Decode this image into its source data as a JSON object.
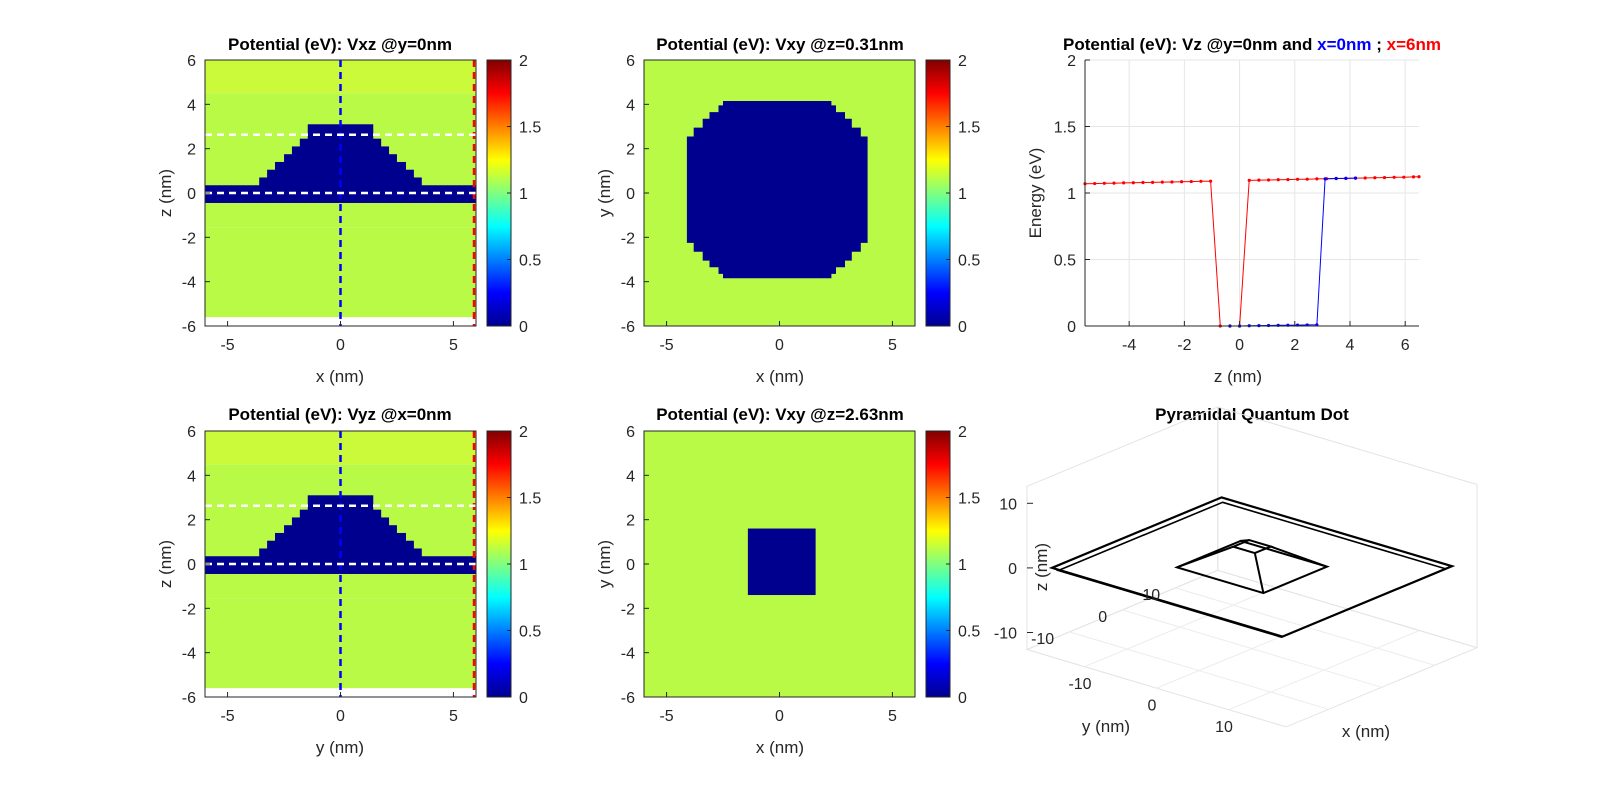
{
  "figure": {
    "panels": [
      {
        "title": "Potential (eV): Vxz @y=0nm",
        "xlabel": "x (nm)",
        "ylabel": "z (nm)"
      },
      {
        "title": "Potential (eV): Vxy @z=0.31nm",
        "xlabel": "x (nm)",
        "ylabel": "y (nm)"
      },
      {
        "title_parts": [
          "Potential (eV): Vz @y=0nm and ",
          "x=0nm",
          " ; ",
          "x=6nm"
        ],
        "xlabel": "z (nm)",
        "ylabel": "Energy (eV)"
      },
      {
        "title": "Potential (eV): Vyz @x=0nm",
        "xlabel": "y (nm)",
        "ylabel": "z (nm)"
      },
      {
        "title": "Potential (eV): Vxy @z=2.63nm",
        "xlabel": "x (nm)",
        "ylabel": "y (nm)"
      },
      {
        "title": "Pyramidal Quantum Dot",
        "xlabel": "x (nm)",
        "ylabel": "y (nm)",
        "zlabel": "z (nm)"
      }
    ]
  },
  "colors": {
    "barrier_low": "#b8fa46",
    "barrier_high": "#cbfa3a",
    "well": "#00008f",
    "cut_blue": "#0000ff",
    "cut_red": "#ff0000",
    "cut_white": "#ffffff"
  },
  "chart_data": [
    {
      "type": "heatmap",
      "title": "Potential (eV): Vxz @y=0nm",
      "xlabel": "x (nm)",
      "ylabel": "z (nm)",
      "xlim": [
        -6,
        6
      ],
      "ylim": [
        -6,
        6
      ],
      "xticks": [
        -5,
        0,
        5
      ],
      "yticks": [
        -6,
        -4,
        -2,
        0,
        2,
        4,
        6
      ],
      "colorbar": {
        "colormap": "jet",
        "clim": [
          0,
          2
        ],
        "ticks": [
          "0",
          "0.5",
          "1",
          "1.5",
          "2"
        ]
      },
      "barrier_bands": [
        {
          "z_range": [
            -5.6,
            -1.55
          ],
          "value_eV": 1.07
        },
        {
          "z_range": [
            -1.55,
            4.5
          ],
          "value_eV": 1.09
        },
        {
          "z_range": [
            4.5,
            6.0
          ],
          "value_eV": 1.12
        }
      ],
      "wetting_layer_z": [
        -0.45,
        0.35
      ],
      "dot_steps": [
        {
          "z_range": [
            0.35,
            0.7
          ],
          "x_range": [
            -3.6,
            3.6
          ]
        },
        {
          "z_range": [
            0.7,
            1.05
          ],
          "x_range": [
            -3.25,
            3.25
          ]
        },
        {
          "z_range": [
            1.05,
            1.4
          ],
          "x_range": [
            -2.9,
            2.9
          ]
        },
        {
          "z_range": [
            1.4,
            1.75
          ],
          "x_range": [
            -2.5,
            2.5
          ]
        },
        {
          "z_range": [
            1.75,
            2.1
          ],
          "x_range": [
            -2.15,
            2.15
          ]
        },
        {
          "z_range": [
            2.1,
            2.45
          ],
          "x_range": [
            -1.8,
            1.8
          ]
        },
        {
          "z_range": [
            2.45,
            2.8
          ],
          "x_range": [
            -1.45,
            1.45
          ]
        },
        {
          "z_range": [
            2.8,
            3.1
          ],
          "x_range": [
            -1.45,
            1.45
          ]
        }
      ],
      "cut_lines": [
        {
          "orientation": "vertical",
          "at": 0,
          "color": "blue"
        },
        {
          "orientation": "vertical",
          "at": 6,
          "color": "red"
        },
        {
          "orientation": "horizontal",
          "at": 0.0,
          "color": "white"
        },
        {
          "orientation": "horizontal",
          "at": 2.63,
          "color": "white"
        }
      ]
    },
    {
      "type": "heatmap",
      "title": "Potential (eV): Vxy @z=0.31nm",
      "xlabel": "x (nm)",
      "ylabel": "y (nm)",
      "xlim": [
        -6,
        6
      ],
      "ylim": [
        -6,
        6
      ],
      "xticks": [
        -5,
        0,
        5
      ],
      "yticks": [
        -6,
        -4,
        -2,
        0,
        2,
        4,
        6
      ],
      "colorbar": {
        "colormap": "jet",
        "clim": [
          0,
          2
        ],
        "ticks": [
          "0",
          "0.5",
          "1",
          "1.5",
          "2"
        ]
      },
      "barrier_value_eV": 1.09,
      "well_shape": "octagon",
      "well_half_width": 4.0,
      "well_value_eV": 0
    },
    {
      "type": "line",
      "title": "Potential (eV): Vz @y=0nm and x=0nm ; x=6nm",
      "xlabel": "z (nm)",
      "ylabel": "Energy (eV)",
      "xlim": [
        -5.6,
        6.5
      ],
      "ylim": [
        0,
        2
      ],
      "xticks": [
        -4,
        -2,
        0,
        2,
        4,
        6
      ],
      "yticks": [
        "0",
        "0.5",
        "1",
        "1.5",
        "2"
      ],
      "grid": true,
      "series": [
        {
          "name": "x=6nm",
          "color": "red",
          "x": [
            -5.6,
            -5.25,
            -4.9,
            -4.55,
            -4.2,
            -3.85,
            -3.5,
            -3.15,
            -2.8,
            -2.45,
            -2.1,
            -1.75,
            -1.4,
            -1.05,
            -0.7,
            -0.35,
            0.0,
            0.35,
            0.7,
            1.05,
            1.4,
            1.75,
            2.1,
            2.45,
            2.8,
            3.15,
            3.5,
            3.85,
            4.2,
            4.55,
            4.9,
            5.25,
            5.6,
            5.95,
            6.3,
            6.5
          ],
          "y": [
            1.07,
            1.071,
            1.073,
            1.074,
            1.076,
            1.077,
            1.079,
            1.08,
            1.082,
            1.083,
            1.085,
            1.086,
            1.088,
            1.089,
            0.0,
            0.0,
            0.0,
            1.095,
            1.097,
            1.098,
            1.1,
            1.101,
            1.103,
            1.104,
            1.106,
            1.107,
            1.109,
            1.11,
            1.112,
            1.113,
            1.115,
            1.116,
            1.118,
            1.119,
            1.121,
            1.122
          ]
        },
        {
          "name": "x=0nm",
          "color": "blue",
          "x": [
            -0.35,
            0.0,
            0.35,
            0.7,
            1.05,
            1.4,
            1.75,
            2.1,
            2.45,
            2.8,
            3.1,
            3.5,
            3.85,
            4.2
          ],
          "y": [
            0.0,
            0.0,
            0.002,
            0.003,
            0.004,
            0.005,
            0.006,
            0.007,
            0.008,
            0.009,
            1.106,
            1.109,
            1.11,
            1.112
          ]
        }
      ]
    },
    {
      "type": "heatmap",
      "title": "Potential (eV): Vyz @x=0nm",
      "xlabel": "y (nm)",
      "ylabel": "z (nm)",
      "xlim": [
        -6,
        6
      ],
      "ylim": [
        -6,
        6
      ],
      "xticks": [
        -5,
        0,
        5
      ],
      "yticks": [
        -6,
        -4,
        -2,
        0,
        2,
        4,
        6
      ],
      "colorbar": {
        "colormap": "jet",
        "clim": [
          0,
          2
        ],
        "ticks": [
          "0",
          "0.5",
          "1",
          "1.5",
          "2"
        ]
      },
      "same_profile_as": "Vxz @y=0nm",
      "cut_lines": [
        {
          "orientation": "vertical",
          "at": 0,
          "color": "blue"
        },
        {
          "orientation": "vertical",
          "at": 6,
          "color": "red"
        },
        {
          "orientation": "horizontal",
          "at": 0.0,
          "color": "white"
        },
        {
          "orientation": "horizontal",
          "at": 2.63,
          "color": "white"
        }
      ]
    },
    {
      "type": "heatmap",
      "title": "Potential (eV): Vxy @z=2.63nm",
      "xlabel": "x (nm)",
      "ylabel": "y (nm)",
      "xlim": [
        -6,
        6
      ],
      "ylim": [
        -6,
        6
      ],
      "xticks": [
        -5,
        0,
        5
      ],
      "yticks": [
        -6,
        -4,
        -2,
        0,
        2,
        4,
        6
      ],
      "colorbar": {
        "colormap": "jet",
        "clim": [
          0,
          2
        ],
        "ticks": [
          "0",
          "0.5",
          "1",
          "1.5",
          "2"
        ]
      },
      "barrier_value_eV": 1.09,
      "well_shape": "square",
      "well_x_range": [
        -1.4,
        1.6
      ],
      "well_y_range": [
        -1.4,
        1.6
      ],
      "well_value_eV": 0
    },
    {
      "type": "3d-wireframe",
      "title": "Pyramidal Quantum Dot",
      "xlabel": "x (nm)",
      "ylabel": "y (nm)",
      "zlabel": "z (nm)",
      "xticks": [
        -10,
        0,
        10
      ],
      "yticks": [
        -10,
        0,
        10
      ],
      "zticks": [
        -10,
        0,
        10
      ],
      "objects": [
        {
          "name": "outer-frame",
          "half_width": 16,
          "z": 0
        },
        {
          "name": "pyramid-base",
          "half_width": 6,
          "z": 0
        },
        {
          "name": "pyramid-top",
          "half_width": 1.5,
          "z": 3
        }
      ]
    }
  ]
}
